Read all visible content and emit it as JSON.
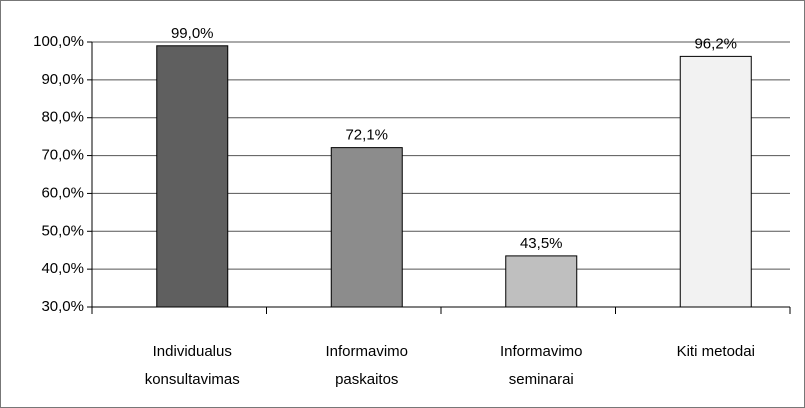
{
  "chart_data": {
    "type": "bar",
    "categories": [
      "Individualus konsultavimas",
      "Informavimo paskaitos",
      "Informavimo seminarai",
      "Kiti metodai"
    ],
    "values": [
      99.0,
      72.1,
      43.5,
      96.2
    ],
    "value_labels": [
      "99,0%",
      "72,1%",
      "43,5%",
      "96,2%"
    ],
    "colors": [
      "#5f5f5f",
      "#8c8c8c",
      "#bfbfbf",
      "#f2f2f2"
    ],
    "ylim": [
      30,
      100
    ],
    "yticks": [
      {
        "value": 30,
        "label": "30,0%"
      },
      {
        "value": 40,
        "label": "40,0%"
      },
      {
        "value": 50,
        "label": "50,0%"
      },
      {
        "value": 60,
        "label": "60,0%"
      },
      {
        "value": 70,
        "label": "70,0%"
      },
      {
        "value": 80,
        "label": "80,0%"
      },
      {
        "value": 90,
        "label": "90,0%"
      },
      {
        "value": 100,
        "label": "100,0%"
      }
    ],
    "grid": true
  }
}
